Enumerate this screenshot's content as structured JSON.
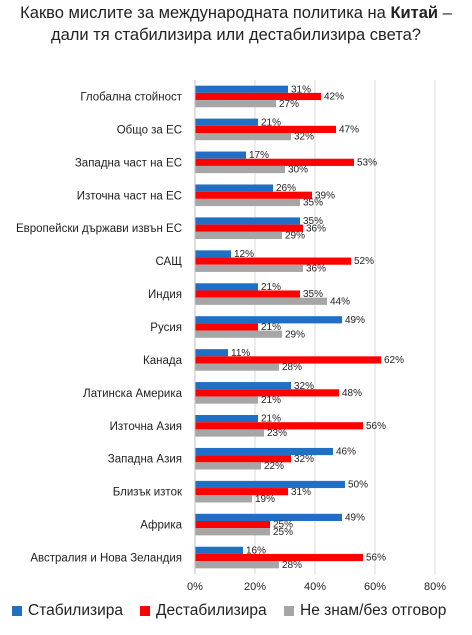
{
  "title": {
    "line1_before": "Какво мислите за международната политика на ",
    "line1_bold": "Китай",
    "line1_after": " –",
    "line2": "дали тя стабилизира или дестабилизира света?"
  },
  "colors": {
    "stabilizes": "#1f6fc5",
    "destabilizes": "#ff0000",
    "dont_know": "#a6a6a6",
    "grid": "#d9d9d9",
    "text": "#222222"
  },
  "chart_data": {
    "type": "bar",
    "orientation": "horizontal",
    "categories": [
      "Глобална стойност",
      "Общо за ЕС",
      "Западна част на ЕС",
      "Източна част на ЕС",
      "Европейски държави извън ЕС",
      "САЩ",
      "Индия",
      "Русия",
      "Канада",
      "Латинска Америка",
      "Източна Азия",
      "Западна Азия",
      "Близък изток",
      "Африка",
      "Австралия и Нова Зеландия"
    ],
    "series": [
      {
        "name": "Стабилизира",
        "values": [
          31,
          21,
          17,
          26,
          35,
          12,
          21,
          49,
          11,
          32,
          21,
          46,
          50,
          49,
          16
        ]
      },
      {
        "name": "Дестабилизира",
        "values": [
          42,
          47,
          53,
          39,
          36,
          52,
          35,
          21,
          62,
          48,
          56,
          32,
          31,
          25,
          56
        ]
      },
      {
        "name": "Не знам/без отговор",
        "values": [
          27,
          32,
          30,
          35,
          29,
          36,
          44,
          29,
          28,
          21,
          23,
          22,
          19,
          25,
          28
        ]
      }
    ],
    "xlim": [
      0,
      80
    ],
    "xticks": [
      "0%",
      "20%",
      "40%",
      "60%",
      "80%"
    ],
    "value_suffix": "%",
    "grid": true,
    "legend_position": "bottom"
  }
}
